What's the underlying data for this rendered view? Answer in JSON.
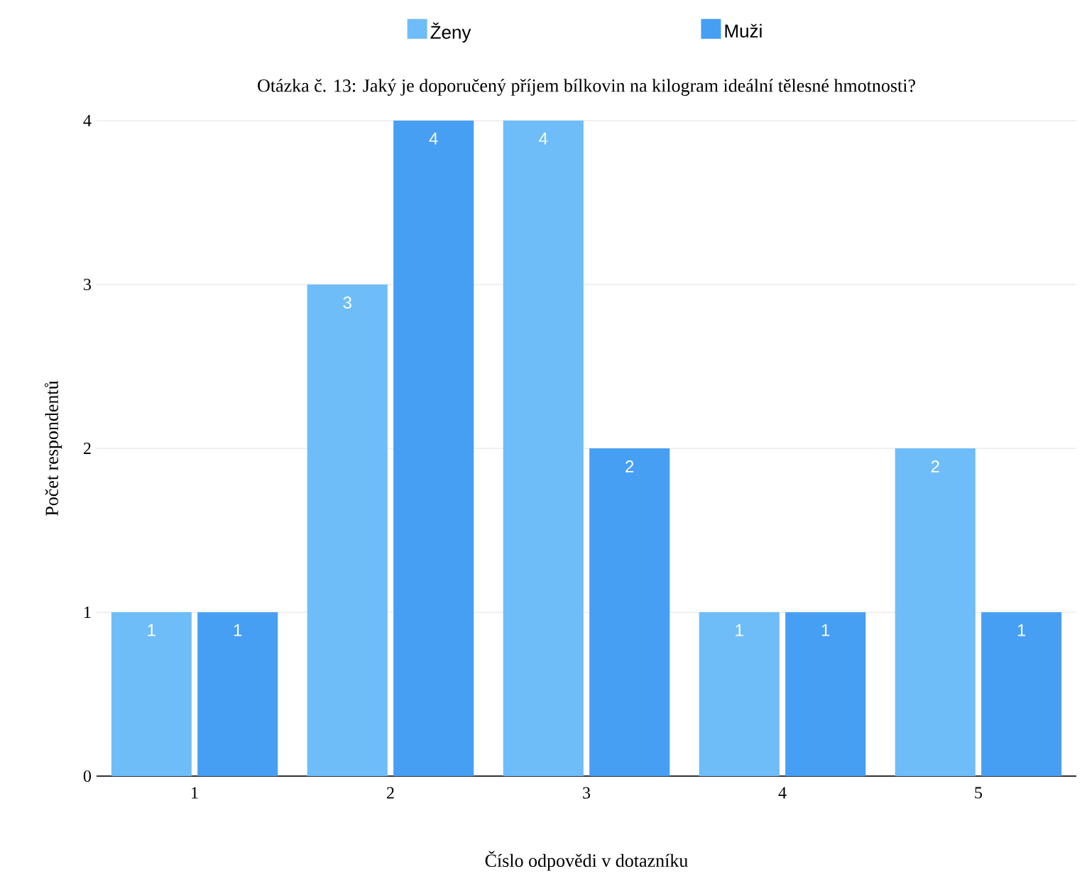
{
  "chart_data": {
    "type": "bar",
    "title": "Otázka č. 13: Jaký je doporučený příjem bílkovin na kilogram ideální tělesné hmotnosti?",
    "xlabel": "Číslo odpovědi v dotazníku",
    "ylabel": "Počet respondentů",
    "categories": [
      "1",
      "2",
      "3",
      "4",
      "5"
    ],
    "series": [
      {
        "name": "Ženy",
        "color": "#6fbdf8",
        "values": [
          1,
          3,
          4,
          1,
          2
        ]
      },
      {
        "name": "Muži",
        "color": "#479ff4",
        "values": [
          1,
          4,
          2,
          1,
          1
        ]
      }
    ],
    "ylim": [
      0,
      4
    ],
    "yticks": [
      0,
      1,
      2,
      3,
      4
    ],
    "grid": "y",
    "legend": "top",
    "data_labels": true
  }
}
